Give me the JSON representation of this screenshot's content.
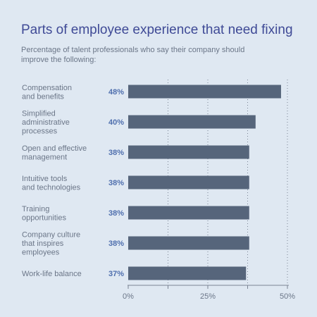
{
  "chart_data": {
    "type": "bar",
    "orientation": "horizontal",
    "title": "Parts of employee experience that need fixing",
    "subtitle": "Percentage of talent professionals who say their company should improve the following:",
    "categories": [
      [
        "Compensation",
        "and benefits"
      ],
      [
        "Simplified",
        "administrative",
        "processes"
      ],
      [
        "Open and effective",
        "management"
      ],
      [
        "Intuitive tools",
        "and technologies"
      ],
      [
        "Training",
        "opportunities"
      ],
      [
        "Company culture",
        "that inspires",
        "employees"
      ],
      [
        "Work-life balance"
      ]
    ],
    "values": [
      48,
      40,
      38,
      38,
      38,
      38,
      37
    ],
    "value_labels": [
      "48%",
      "40%",
      "38%",
      "38%",
      "38%",
      "38%",
      "37%"
    ],
    "xlim": [
      0,
      50
    ],
    "ticks": [
      0,
      25,
      50
    ],
    "tick_labels": [
      "0%",
      "25%",
      "50%"
    ],
    "grid": true,
    "colors": {
      "bar": "#56657b",
      "title": "#3f4a96",
      "value_label": "#4f6fae",
      "background": "#dfe8f2"
    }
  }
}
